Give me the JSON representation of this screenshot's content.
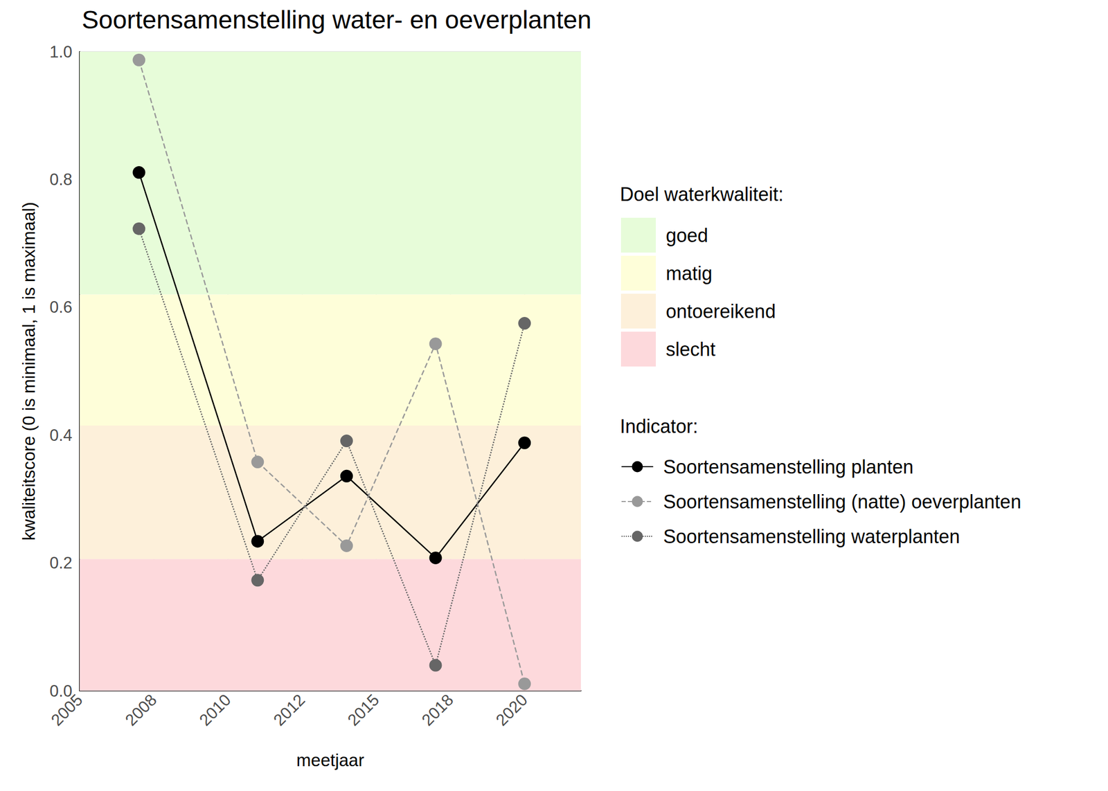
{
  "chart_data": {
    "type": "line",
    "title": "Soortensamenstelling water- en oeverplanten",
    "x_label": "meetjaar",
    "y_label": "kwaliteitscore (0 is minimaal, 1 is maximaal)",
    "x": [
      2007,
      2011,
      2014,
      2017,
      2020
    ],
    "xlim": [
      2005,
      2021.9
    ],
    "xticks": [
      {
        "value": 2005,
        "label": "2005"
      },
      {
        "value": 2007.5,
        "label": "2008"
      },
      {
        "value": 2010,
        "label": "2010"
      },
      {
        "value": 2012.5,
        "label": "2012"
      },
      {
        "value": 2015,
        "label": "2015"
      },
      {
        "value": 2017.5,
        "label": "2018"
      },
      {
        "value": 2020,
        "label": "2020"
      }
    ],
    "ylim": [
      0,
      1
    ],
    "yticks": [
      {
        "value": 0,
        "label": "0.0"
      },
      0.2,
      0.4,
      0.6,
      0.8,
      {
        "value": 1,
        "label": "1.0"
      }
    ],
    "grid": true,
    "legend": "right",
    "bands_title": "Doel waterkwaliteit:",
    "bands": [
      {
        "name": "goed",
        "from": 0.62,
        "to": 1,
        "color": "#e7fcd9"
      },
      {
        "name": "matig",
        "from": 0.415,
        "to": 0.62,
        "color": "#fefed9"
      },
      {
        "name": "ontoereikend",
        "from": 0.206,
        "to": 0.415,
        "color": "#fdf0da"
      },
      {
        "name": "slecht",
        "from": 0,
        "to": 0.206,
        "color": "#fdd9dc"
      }
    ],
    "series_title": "Indicator:",
    "series": [
      {
        "name": "Soortensamenstelling planten",
        "color": "#000000",
        "marker": "circle",
        "line_style": "solid",
        "values": [
          0.811,
          0.234,
          0.336,
          0.208,
          0.388
        ]
      },
      {
        "name": "Soortensamenstelling (natte) oeverplanten",
        "color": "#999999",
        "marker": "circle",
        "line_style": "dashed",
        "values": [
          0.987,
          0.358,
          0.227,
          0.543,
          0.011
        ]
      },
      {
        "name": "Soortensamenstelling waterplanten",
        "color": "#666666",
        "marker": "circle",
        "line_style": "dotted",
        "values": [
          0.723,
          0.173,
          0.391,
          0.04,
          0.575
        ]
      }
    ]
  }
}
